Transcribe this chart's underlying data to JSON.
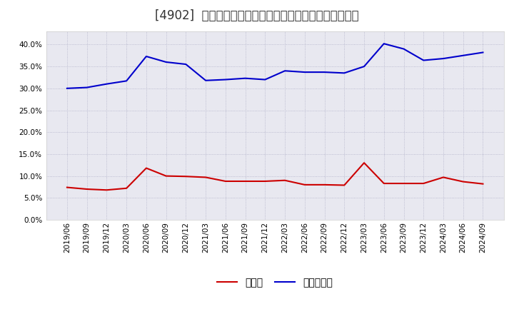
{
  "title": "[4902]  現預金、有利子負債の総資産に対する比率の推移",
  "x_labels": [
    "2019/06",
    "2019/09",
    "2019/12",
    "2020/03",
    "2020/06",
    "2020/09",
    "2020/12",
    "2021/03",
    "2021/06",
    "2021/09",
    "2021/12",
    "2022/03",
    "2022/06",
    "2022/09",
    "2022/12",
    "2023/03",
    "2023/06",
    "2023/09",
    "2023/12",
    "2024/03",
    "2024/06",
    "2024/09"
  ],
  "cash": [
    0.074,
    0.07,
    0.068,
    0.072,
    0.118,
    0.1,
    0.099,
    0.097,
    0.088,
    0.088,
    0.088,
    0.09,
    0.08,
    0.08,
    0.079,
    0.13,
    0.083,
    0.083,
    0.083,
    0.097,
    0.087,
    0.082
  ],
  "debt": [
    0.3,
    0.302,
    0.31,
    0.317,
    0.373,
    0.36,
    0.355,
    0.318,
    0.32,
    0.323,
    0.32,
    0.34,
    0.337,
    0.337,
    0.335,
    0.35,
    0.402,
    0.39,
    0.364,
    0.368,
    0.375,
    0.382
  ],
  "cash_color": "#cc0000",
  "debt_color": "#0000cc",
  "bg_color": "#ffffff",
  "plot_bg_color": "#e8e8f0",
  "grid_color": "#b0b0c8",
  "ylim": [
    0.0,
    0.43
  ],
  "yticks": [
    0.0,
    0.05,
    0.1,
    0.15,
    0.2,
    0.25,
    0.3,
    0.35,
    0.4
  ],
  "legend_cash": "現預金",
  "legend_debt": "有利子負債",
  "title_fontsize": 12,
  "axis_fontsize": 7.5,
  "legend_fontsize": 10
}
